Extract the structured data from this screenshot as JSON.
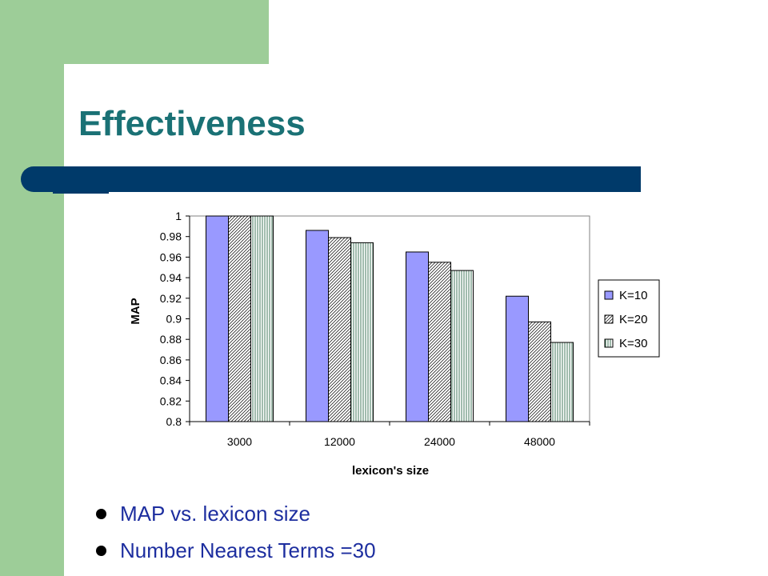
{
  "slide": {
    "title": "Effectiveness",
    "bullets": [
      "MAP vs. lexicon size",
      "Number Nearest Terms =30"
    ]
  },
  "colors": {
    "green_sidebar": "#9dcd98",
    "title": "#1a7175",
    "band": "#003a6a",
    "bullet_text": "#1d2e9f",
    "k10_fill": "#9999ff",
    "k20_fill": "#ffffff",
    "k30_fill": "#ffffff"
  },
  "chart_data": {
    "type": "bar",
    "title": "",
    "xlabel": "lexicon's size",
    "ylabel": "MAP",
    "categories": [
      "3000",
      "12000",
      "24000",
      "48000"
    ],
    "series": [
      {
        "name": "K=10",
        "values": [
          1.0,
          0.986,
          0.965,
          0.922
        ],
        "pattern": "solid"
      },
      {
        "name": "K=20",
        "values": [
          1.0,
          0.979,
          0.955,
          0.897
        ],
        "pattern": "diagonal"
      },
      {
        "name": "K=30",
        "values": [
          1.0,
          0.974,
          0.947,
          0.877
        ],
        "pattern": "vertical"
      }
    ],
    "ylim": [
      0.8,
      1.0
    ],
    "yticks": [
      "0.8",
      "0.82",
      "0.84",
      "0.86",
      "0.88",
      "0.9",
      "0.92",
      "0.94",
      "0.96",
      "0.98",
      "1"
    ],
    "grid": false,
    "legend_position": "right"
  }
}
